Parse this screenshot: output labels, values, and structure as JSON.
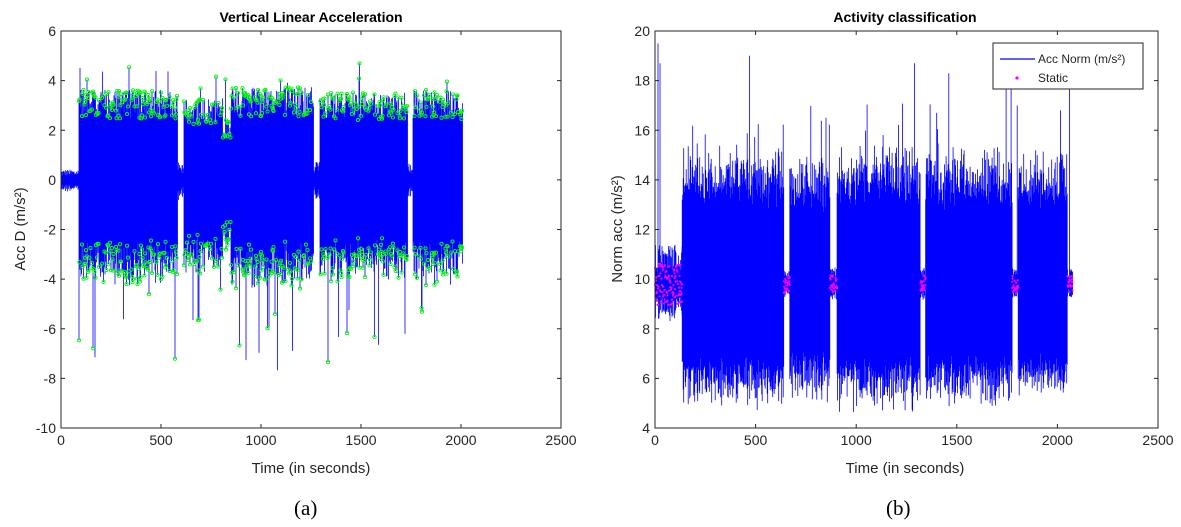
{
  "chart_data": [
    {
      "type": "line",
      "title": "Vertical Linear Acceleration",
      "xlabel": "Time (in seconds)",
      "ylabel": "Acc D (m/s²)",
      "xlim": [
        0,
        2500
      ],
      "ylim": [
        -10,
        6
      ],
      "x_ticks": [
        0,
        500,
        1000,
        1500,
        2000,
        2500
      ],
      "y_ticks": [
        -10,
        -8,
        -6,
        -4,
        -2,
        0,
        2,
        4,
        6
      ],
      "panel_label": "(a)",
      "legend": "none",
      "colors": {
        "signal": "#0000ff",
        "peaks": "#00ff00"
      },
      "segments": [
        {
          "x": [
            0,
            90
          ],
          "amp": 0.35,
          "kind": "idle"
        },
        {
          "x": [
            90,
            585
          ],
          "amp": 3.3,
          "kind": "walk"
        },
        {
          "x": [
            585,
            615
          ],
          "amp": 0.6,
          "kind": "idle"
        },
        {
          "x": [
            615,
            810
          ],
          "amp": 3.0,
          "kind": "walk"
        },
        {
          "x": [
            810,
            850
          ],
          "amp": 2.2,
          "kind": "walk"
        },
        {
          "x": [
            850,
            1265
          ],
          "amp": 3.4,
          "kind": "walk"
        },
        {
          "x": [
            1265,
            1295
          ],
          "amp": 0.6,
          "kind": "idle"
        },
        {
          "x": [
            1295,
            1735
          ],
          "amp": 3.2,
          "kind": "walk"
        },
        {
          "x": [
            1735,
            1760
          ],
          "amp": 0.6,
          "kind": "idle"
        },
        {
          "x": [
            1760,
            1990
          ],
          "amp": 3.3,
          "kind": "walk"
        },
        {
          "x": [
            1990,
            2010
          ],
          "amp": 3.0,
          "kind": "walk"
        }
      ],
      "series": [
        {
          "name": "Acc D",
          "style": "line"
        },
        {
          "name": "Peaks",
          "style": "marker"
        }
      ]
    },
    {
      "type": "line",
      "title": "Activity classification",
      "xlabel": "Time (in seconds)",
      "ylabel": "Norm acc (m/s²)",
      "xlim": [
        0,
        2500
      ],
      "ylim": [
        4,
        20
      ],
      "x_ticks": [
        0,
        500,
        1000,
        1500,
        2000,
        2500
      ],
      "y_ticks": [
        4,
        6,
        8,
        10,
        12,
        14,
        16,
        18,
        20
      ],
      "panel_label": "(b)",
      "legend": "top-right",
      "colors": {
        "signal": "#0000ff",
        "static": "#ff00ff"
      },
      "segments": [
        {
          "x": [
            0,
            135
          ],
          "amp": 1.2,
          "kind": "static"
        },
        {
          "x": [
            135,
            640
          ],
          "amp": 4.2,
          "kind": "walk"
        },
        {
          "x": [
            640,
            670
          ],
          "amp": 0.5,
          "kind": "static"
        },
        {
          "x": [
            670,
            870
          ],
          "amp": 4.0,
          "kind": "walk"
        },
        {
          "x": [
            870,
            905
          ],
          "amp": 0.5,
          "kind": "static"
        },
        {
          "x": [
            905,
            1320
          ],
          "amp": 4.3,
          "kind": "walk"
        },
        {
          "x": [
            1320,
            1345
          ],
          "amp": 0.5,
          "kind": "static"
        },
        {
          "x": [
            1345,
            1775
          ],
          "amp": 4.2,
          "kind": "walk"
        },
        {
          "x": [
            1775,
            1805
          ],
          "amp": 0.5,
          "kind": "static"
        },
        {
          "x": [
            1805,
            2050
          ],
          "amp": 4.0,
          "kind": "walk"
        },
        {
          "x": [
            2050,
            2075
          ],
          "amp": 0.5,
          "kind": "static"
        }
      ],
      "spikes": [
        {
          "x": 15,
          "y": 19.5
        },
        {
          "x": 25,
          "y": 18.7
        },
        {
          "x": 470,
          "y": 19.0
        },
        {
          "x": 1290,
          "y": 18.7
        },
        {
          "x": 1460,
          "y": 18.3
        },
        {
          "x": 1745,
          "y": 17.8
        },
        {
          "x": 1770,
          "y": 18.6
        },
        {
          "x": 2060,
          "y": 18.4
        },
        {
          "x": 850,
          "y": 16.5
        },
        {
          "x": 1400,
          "y": 16.7
        },
        {
          "x": 1800,
          "y": 17.0
        },
        {
          "x": 2015,
          "y": 16.8
        }
      ],
      "series": [
        {
          "name": "Acc Norm (m/s²)",
          "style": "line"
        },
        {
          "name": "Static",
          "style": "marker"
        }
      ]
    }
  ]
}
